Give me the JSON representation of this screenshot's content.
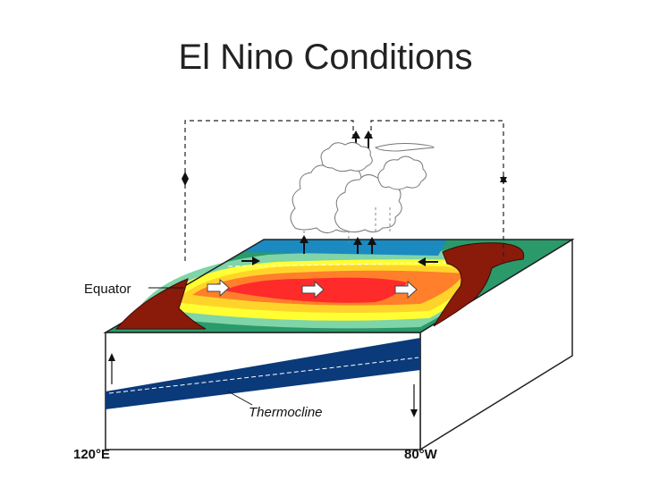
{
  "slide": {
    "title": "El Nino Conditions"
  },
  "diagram": {
    "labels": {
      "equator": "Equator",
      "thermocline": "Thermocline",
      "west_longitude": "120°E",
      "east_longitude": "80°W"
    },
    "colors": {
      "warm_core": "#ff2a2a",
      "warm": "#ff7f2a",
      "mild": "#ffd42a",
      "yellow": "#ffff33",
      "cool": "#7fd4a8",
      "cold": "#2a9a6a",
      "deep_ocean": "#0a3a7a",
      "land": "#8a1a0a",
      "surface_blue": "#1a8ac0"
    }
  }
}
